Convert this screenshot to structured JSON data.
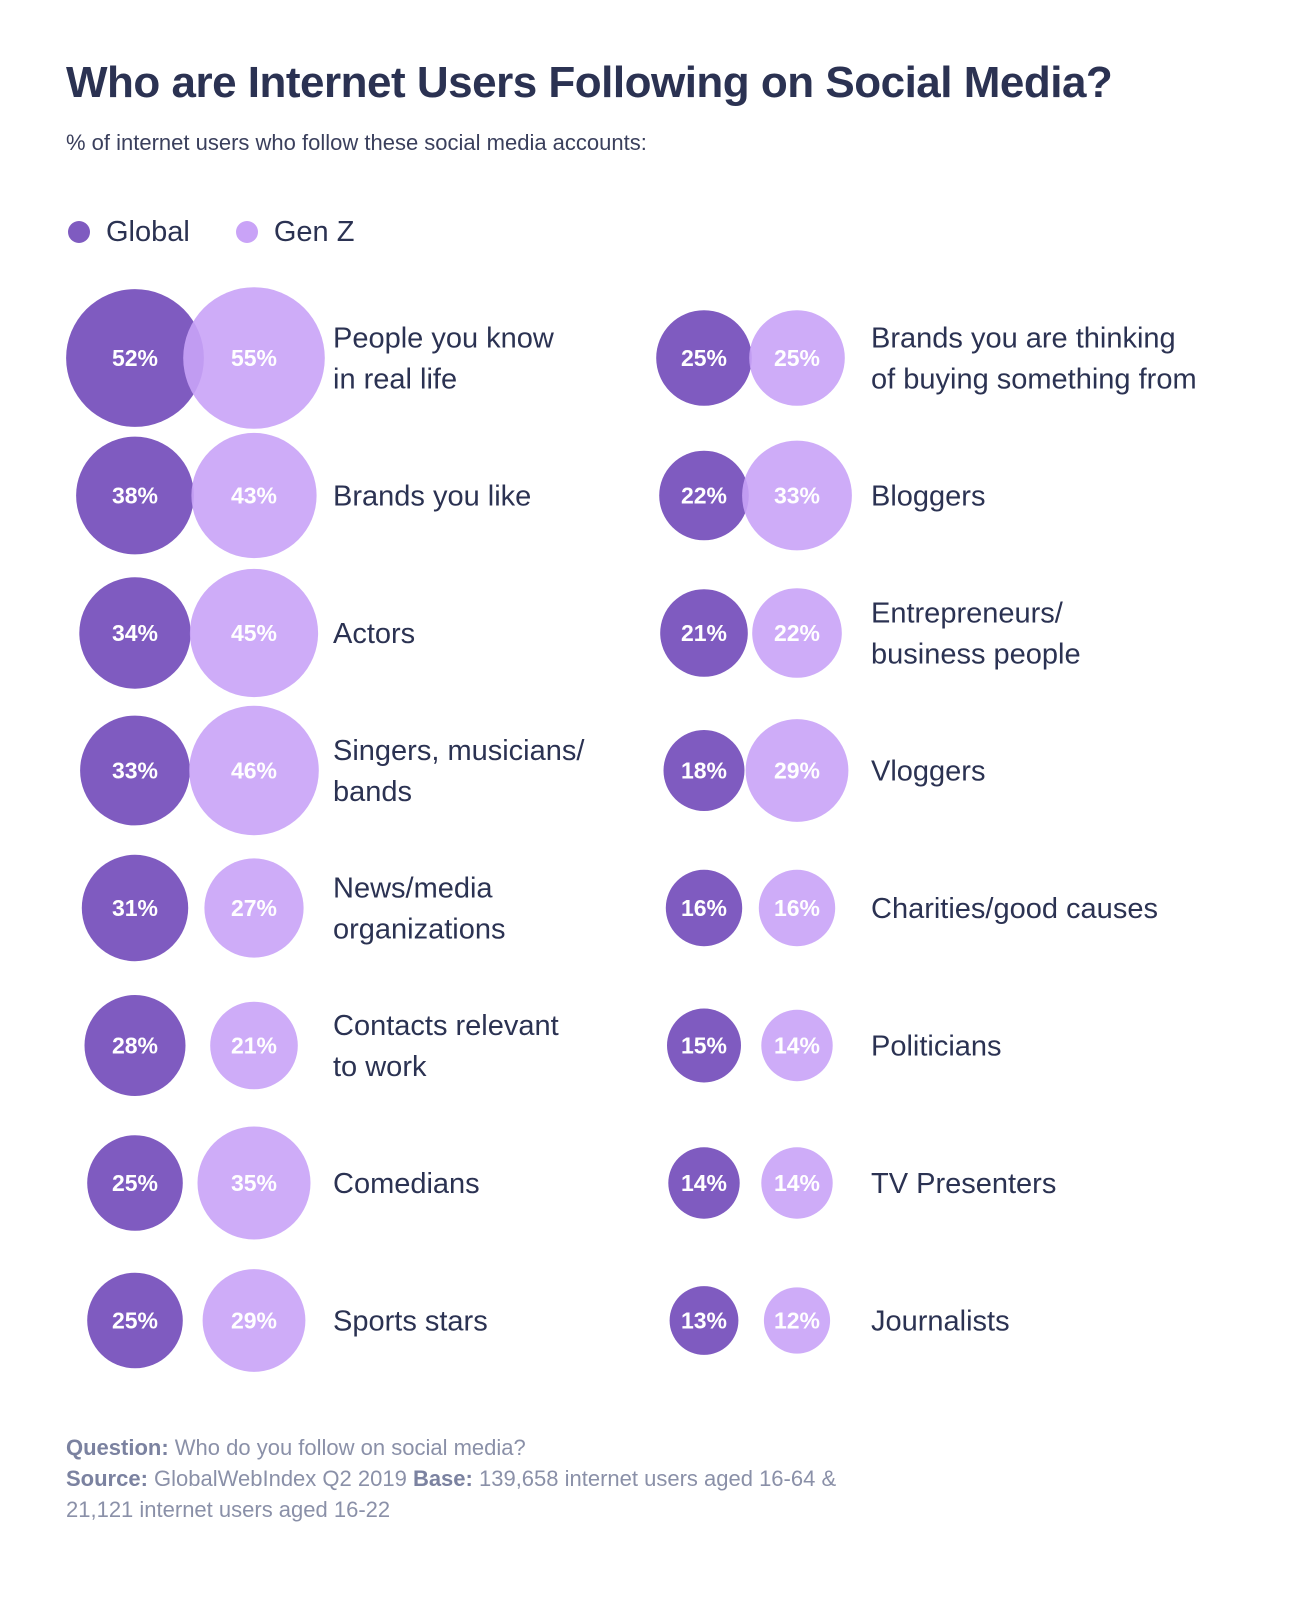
{
  "title": "Who are Internet Users Following on Social Media?",
  "subtitle": "% of internet users who follow these social media accounts:",
  "colors": {
    "global": "#7f5bc0",
    "genz": "#c9a3f7",
    "text": "#2b3252",
    "muted": "#8a90a8"
  },
  "chart_data": {
    "type": "bubble",
    "legend_position": "top-left",
    "series": [
      {
        "name": "Global",
        "color": "#7f5bc0"
      },
      {
        "name": "Gen Z",
        "color": "#c9a3f7"
      }
    ],
    "left": [
      {
        "label": [
          "People you know",
          "in real life"
        ],
        "global": 52,
        "genz": 55
      },
      {
        "label": [
          "Brands you like"
        ],
        "global": 38,
        "genz": 43
      },
      {
        "label": [
          "Actors"
        ],
        "global": 34,
        "genz": 45
      },
      {
        "label": [
          "Singers, musicians/",
          "bands"
        ],
        "global": 33,
        "genz": 46
      },
      {
        "label": [
          "News/media",
          "organizations"
        ],
        "global": 31,
        "genz": 27
      },
      {
        "label": [
          "Contacts relevant",
          "to work"
        ],
        "global": 28,
        "genz": 21
      },
      {
        "label": [
          "Comedians"
        ],
        "global": 25,
        "genz": 35
      },
      {
        "label": [
          "Sports stars"
        ],
        "global": 25,
        "genz": 29
      }
    ],
    "right": [
      {
        "label": [
          "Brands you are thinking",
          "of buying something from"
        ],
        "global": 25,
        "genz": 25
      },
      {
        "label": [
          "Bloggers"
        ],
        "global": 22,
        "genz": 33
      },
      {
        "label": [
          "Entrepreneurs/",
          "business people"
        ],
        "global": 21,
        "genz": 22
      },
      {
        "label": [
          "Vloggers"
        ],
        "global": 18,
        "genz": 29
      },
      {
        "label": [
          "Charities/good causes"
        ],
        "global": 16,
        "genz": 16
      },
      {
        "label": [
          "Politicians"
        ],
        "global": 15,
        "genz": 14
      },
      {
        "label": [
          "TV Presenters"
        ],
        "global": 14,
        "genz": 14
      },
      {
        "label": [
          "Journalists"
        ],
        "global": 13,
        "genz": 12
      }
    ]
  },
  "footer": {
    "question_label": "Question:",
    "question_text": "Who do you follow on social media?",
    "source_label": "Source:",
    "source_text": "GlobalWebIndex Q2 2019",
    "base_label": "Base:",
    "base_text": "139,658 internet users aged 16-64 &",
    "base_text_2": "21,121 internet users aged 16-22"
  }
}
